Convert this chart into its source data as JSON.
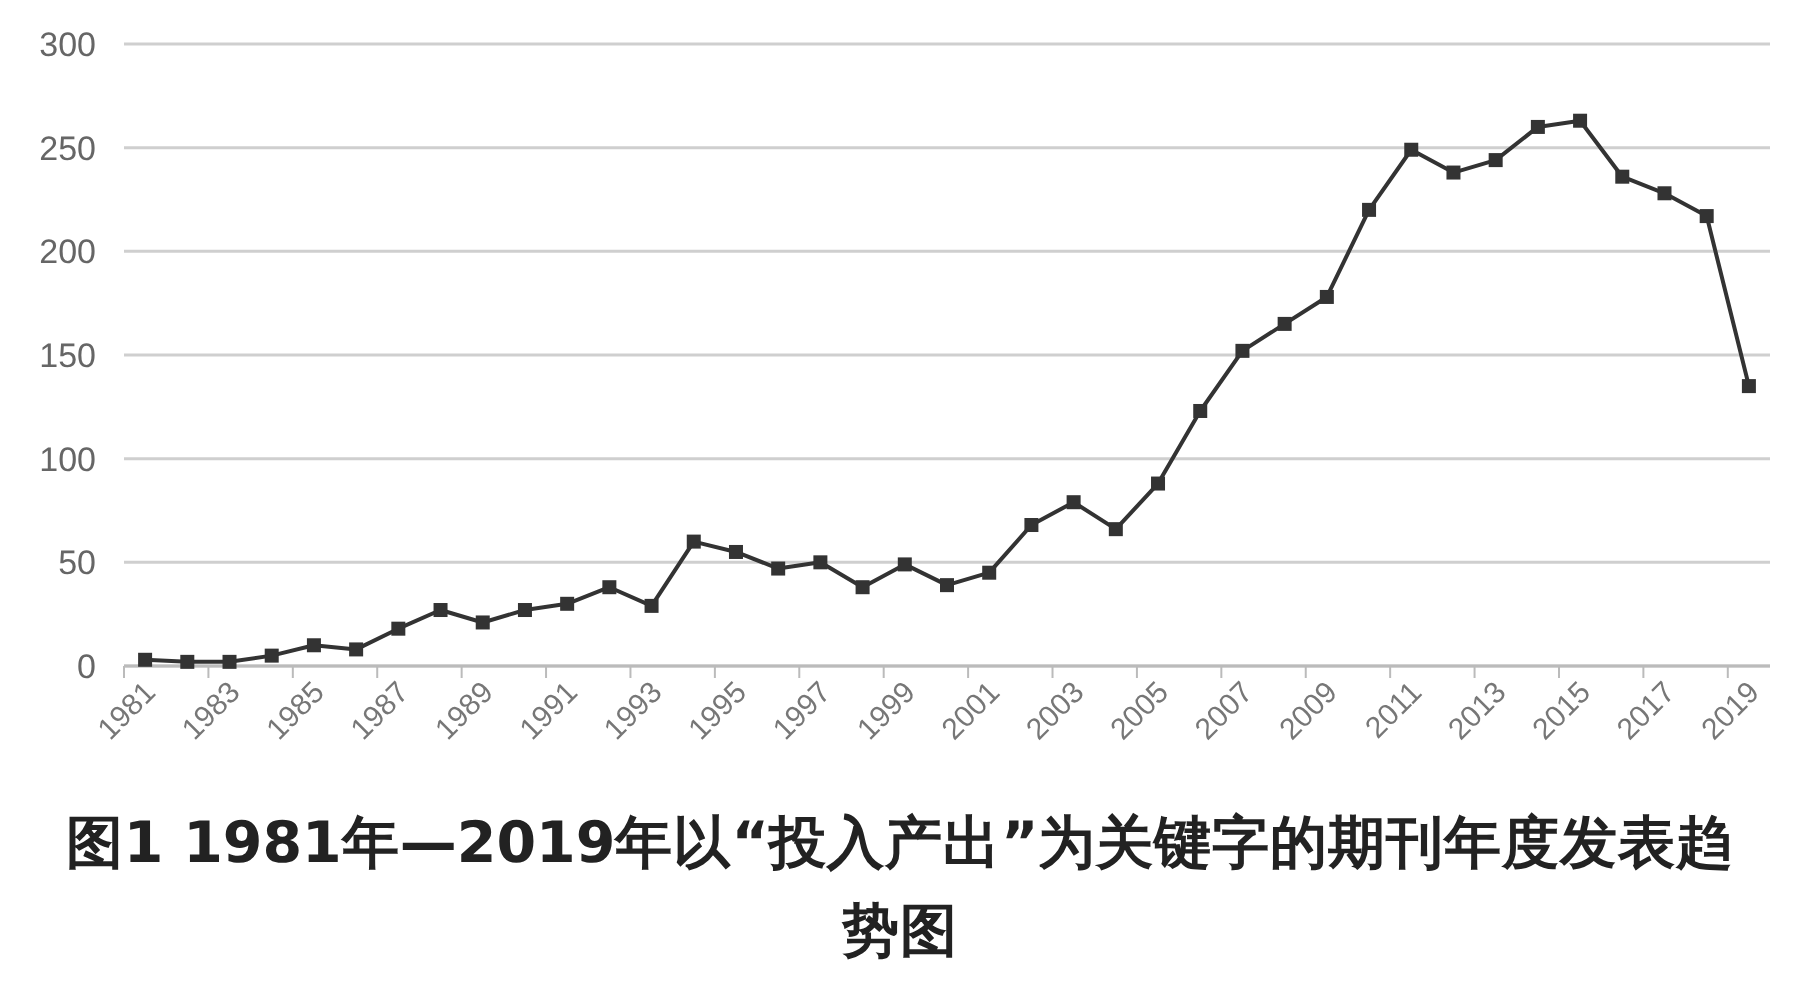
{
  "chart_data": {
    "type": "line",
    "title": "图1 1981年—2019年以“投入产出”为关键字的期刊年度发表趋势图",
    "categories": [
      "1981",
      null,
      "1983",
      null,
      "1985",
      null,
      "1987",
      null,
      "1989",
      null,
      "1991",
      null,
      "1993",
      null,
      "1995",
      null,
      "1997",
      null,
      "1999",
      null,
      "2001",
      null,
      "2003",
      null,
      "2005",
      null,
      "2007",
      null,
      "2009",
      null,
      "2011",
      null,
      "2013",
      null,
      "2015",
      null,
      "2017",
      null,
      "2019"
    ],
    "series": [
      {
        "color": "#333333",
        "values": [
          3,
          2,
          2,
          5,
          10,
          8,
          18,
          27,
          21,
          27,
          30,
          38,
          29,
          60,
          55,
          47,
          50,
          38,
          49,
          39,
          45,
          68,
          79,
          66,
          88,
          123,
          152,
          165,
          178,
          220,
          249,
          238,
          244,
          260,
          263,
          236,
          228,
          217,
          135
        ]
      }
    ],
    "ylim": [
      0,
      300
    ],
    "yticks": [
      0,
      50,
      100,
      150,
      200,
      250,
      300
    ],
    "grid": "y",
    "marker": "square",
    "line_style": "solid"
  }
}
